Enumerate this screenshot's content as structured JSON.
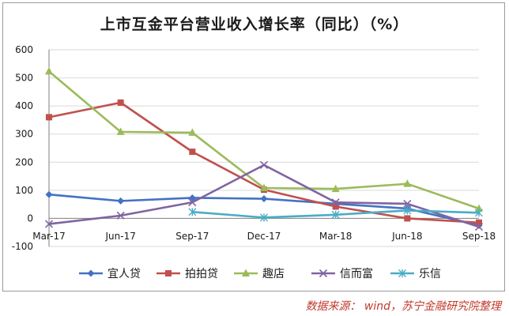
{
  "chart_data": {
    "type": "line",
    "title": "上市互金平台营业收入增长率（同比）（%）",
    "xlabel": "",
    "ylabel": "",
    "categories": [
      "Mar-17",
      "Jun-17",
      "Sep-17",
      "Dec-17",
      "Mar-18",
      "Jun-18",
      "Sep-18"
    ],
    "ylim": [
      -100,
      600
    ],
    "yticks": [
      -100,
      0,
      100,
      200,
      300,
      400,
      500,
      600
    ],
    "grid": "horizontal",
    "legend_position": "bottom",
    "series": [
      {
        "name": "宜人贷",
        "color": "#4472C4",
        "marker": "diamond",
        "values": [
          85,
          62,
          73,
          70,
          52,
          35,
          -25
        ]
      },
      {
        "name": "拍拍贷",
        "color": "#C0504D",
        "marker": "square",
        "values": [
          360,
          412,
          237,
          102,
          42,
          0,
          -15
        ]
      },
      {
        "name": "趣店",
        "color": "#9BBB59",
        "marker": "triangle",
        "values": [
          523,
          308,
          305,
          108,
          105,
          123,
          35
        ]
      },
      {
        "name": "信而富",
        "color": "#8064A2",
        "marker": "x",
        "values": [
          -20,
          10,
          57,
          190,
          57,
          52,
          -30
        ]
      },
      {
        "name": "乐信",
        "color": "#4BACC6",
        "marker": "star",
        "values": [
          null,
          null,
          23,
          3,
          13,
          28,
          20
        ]
      }
    ]
  },
  "source_note": "数据来源： wind，苏宁金融研究院整理"
}
